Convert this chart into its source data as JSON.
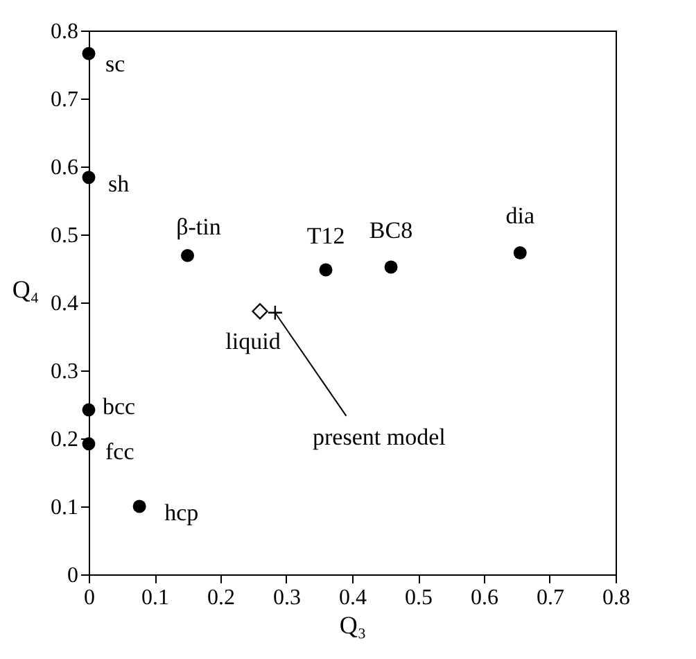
{
  "chart_data": {
    "type": "scatter",
    "xlabel": "Q₃",
    "ylabel": "Q₄",
    "xlim": [
      0,
      0.8
    ],
    "ylim": [
      0,
      0.8
    ],
    "xticks": [
      0,
      0.1,
      0.2,
      0.3,
      0.4,
      0.5,
      0.6,
      0.7,
      0.8
    ],
    "yticks": [
      0,
      0.1,
      0.2,
      0.3,
      0.4,
      0.5,
      0.6,
      0.7,
      0.8
    ],
    "grid": false,
    "series": [
      {
        "marker": "circle",
        "color": "#000000",
        "x": [
          0,
          0,
          0.15,
          0.36,
          0.459,
          0.655,
          0,
          0,
          0.077
        ],
        "values": [
          0.766,
          0.584,
          0.469,
          0.448,
          0.452,
          0.473,
          0.242,
          0.192,
          0.1
        ]
      },
      {
        "marker": "diamond",
        "color": "#000000",
        "x": [
          0.26
        ],
        "values": [
          0.387
        ]
      },
      {
        "marker": "cross",
        "color": "#000000",
        "x": [
          0.283
        ],
        "values": [
          0.385
        ]
      }
    ],
    "annotations": [
      {
        "text": "sc",
        "x": 0,
        "y": 0.766
      },
      {
        "text": "sh",
        "x": 0,
        "y": 0.584
      },
      {
        "text": "β-tin",
        "x": 0.15,
        "y": 0.469
      },
      {
        "text": "T12",
        "x": 0.36,
        "y": 0.448
      },
      {
        "text": "BC8",
        "x": 0.459,
        "y": 0.452
      },
      {
        "text": "dia",
        "x": 0.655,
        "y": 0.473
      },
      {
        "text": "bcc",
        "x": 0,
        "y": 0.242
      },
      {
        "text": "fcc",
        "x": 0,
        "y": 0.192
      },
      {
        "text": "hcp",
        "x": 0.077,
        "y": 0.1
      },
      {
        "text": "liquid",
        "x": 0.26,
        "y": 0.387
      },
      {
        "text": "present model",
        "x": 0.283,
        "y": 0.385
      }
    ]
  }
}
